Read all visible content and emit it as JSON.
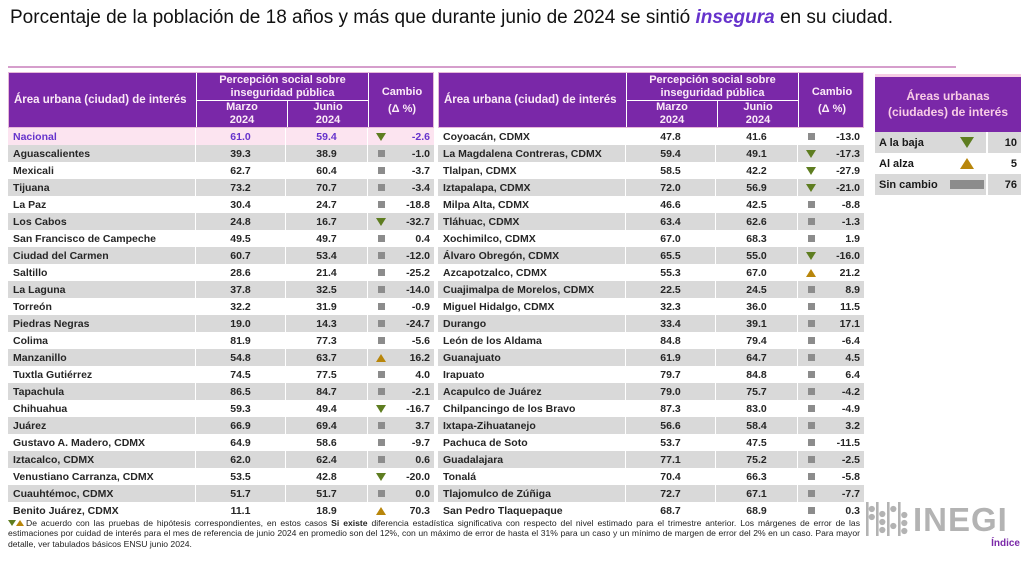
{
  "title": {
    "prefix": "Porcentaje de la población de 18 años y más que durante junio de 2024 se sintió ",
    "highlight": "insegura",
    "suffix": " en su ciudad."
  },
  "header": {
    "col_area": "Área urbana (ciudad) de interés",
    "col_group": "Percepción social sobre inseguridad pública",
    "col_m1": "Marzo",
    "col_m1_sub": "2024",
    "col_m2": "Junio",
    "col_m2_sub": "2024",
    "col_change": "Cambio",
    "col_change_sub": "(Δ %)"
  },
  "legend": {
    "title": "Áreas urbanas (ciudades) de interés",
    "items": [
      {
        "label": "A la baja",
        "symbol": "down",
        "value": "10"
      },
      {
        "label": "Al alza",
        "symbol": "up",
        "value": "5"
      },
      {
        "label": "Sin cambio",
        "symbol": "bar",
        "value": "76"
      }
    ]
  },
  "footnote": {
    "part1": "De acuerdo con las pruebas de hipótesis correspondientes, en estos casos ",
    "bold": "Si existe",
    "part2": " diferencia estadística significativa con respecto del nivel estimado para el trimestre anterior. Los márgenes de error de las estimaciones por cuidad de interés para el mes de referencia de junio 2024 en promedio son del 12%, con un máximo de error de hasta el 31% para un caso y un mínimo de margen de error del 2% en un caso. Para mayor detalle, ver tabulados básicos ENSU junio 2024."
  },
  "logo": {
    "name": "INEGI",
    "link": "Índice"
  },
  "colors": {
    "header_purple": "#7a28a8",
    "accent_violet": "#6633cc",
    "row_gray": "#d9d9d9",
    "row_white": "#ffffff",
    "national_pink": "#fce4f0",
    "down_green": "#5e7d20",
    "up_orange": "#b8860b",
    "no_change_gray": "#8c8c8c"
  },
  "chart_data": {
    "type": "table",
    "title": "Porcentaje de la población de 18 años y más que durante junio de 2024 se sintió insegura en su ciudad.",
    "columns": [
      "Área urbana (ciudad) de interés",
      "Marzo 2024",
      "Junio 2024",
      "Cambio (Δ %)"
    ],
    "trend_meaning": {
      "down": "A la baja (cambio significativo)",
      "up": "Al alza (cambio significativo)",
      "same": "Sin cambio"
    },
    "legend_counts": {
      "A la baja": 10,
      "Al alza": 5,
      "Sin cambio": 76
    },
    "tables": [
      {
        "rows": [
          {
            "name": "Nacional",
            "marzo": "61.0",
            "junio": "59.4",
            "trend": "down",
            "change": "-2.6",
            "emphasis": true
          },
          {
            "name": "Aguascalientes",
            "marzo": "39.3",
            "junio": "38.9",
            "trend": "same",
            "change": "-1.0"
          },
          {
            "name": "Mexicali",
            "marzo": "62.7",
            "junio": "60.4",
            "trend": "same",
            "change": "-3.7"
          },
          {
            "name": "Tijuana",
            "marzo": "73.2",
            "junio": "70.7",
            "trend": "same",
            "change": "-3.4"
          },
          {
            "name": "La Paz",
            "marzo": "30.4",
            "junio": "24.7",
            "trend": "same",
            "change": "-18.8"
          },
          {
            "name": "Los Cabos",
            "marzo": "24.8",
            "junio": "16.7",
            "trend": "down",
            "change": "-32.7"
          },
          {
            "name": "San Francisco de Campeche",
            "marzo": "49.5",
            "junio": "49.7",
            "trend": "same",
            "change": "0.4"
          },
          {
            "name": "Ciudad del Carmen",
            "marzo": "60.7",
            "junio": "53.4",
            "trend": "same",
            "change": "-12.0"
          },
          {
            "name": "Saltillo",
            "marzo": "28.6",
            "junio": "21.4",
            "trend": "same",
            "change": "-25.2"
          },
          {
            "name": "La Laguna",
            "marzo": "37.8",
            "junio": "32.5",
            "trend": "same",
            "change": "-14.0"
          },
          {
            "name": "Torreón",
            "marzo": "32.2",
            "junio": "31.9",
            "trend": "same",
            "change": "-0.9"
          },
          {
            "name": "Piedras Negras",
            "marzo": "19.0",
            "junio": "14.3",
            "trend": "same",
            "change": "-24.7"
          },
          {
            "name": "Colima",
            "marzo": "81.9",
            "junio": "77.3",
            "trend": "same",
            "change": "-5.6"
          },
          {
            "name": "Manzanillo",
            "marzo": "54.8",
            "junio": "63.7",
            "trend": "up",
            "change": "16.2"
          },
          {
            "name": "Tuxtla Gutiérrez",
            "marzo": "74.5",
            "junio": "77.5",
            "trend": "same",
            "change": "4.0"
          },
          {
            "name": "Tapachula",
            "marzo": "86.5",
            "junio": "84.7",
            "trend": "same",
            "change": "-2.1"
          },
          {
            "name": "Chihuahua",
            "marzo": "59.3",
            "junio": "49.4",
            "trend": "down",
            "change": "-16.7"
          },
          {
            "name": "Juárez",
            "marzo": "66.9",
            "junio": "69.4",
            "trend": "same",
            "change": "3.7"
          },
          {
            "name": "Gustavo A. Madero, CDMX",
            "marzo": "64.9",
            "junio": "58.6",
            "trend": "same",
            "change": "-9.7"
          },
          {
            "name": "Iztacalco, CDMX",
            "marzo": "62.0",
            "junio": "62.4",
            "trend": "same",
            "change": "0.6"
          },
          {
            "name": "Venustiano Carranza, CDMX",
            "marzo": "53.5",
            "junio": "42.8",
            "trend": "down",
            "change": "-20.0"
          },
          {
            "name": "Cuauhtémoc, CDMX",
            "marzo": "51.7",
            "junio": "51.7",
            "trend": "same",
            "change": "0.0"
          },
          {
            "name": "Benito Juárez, CDMX",
            "marzo": "11.1",
            "junio": "18.9",
            "trend": "up",
            "change": "70.3"
          }
        ]
      },
      {
        "rows": [
          {
            "name": "Coyoacán, CDMX",
            "marzo": "47.8",
            "junio": "41.6",
            "trend": "same",
            "change": "-13.0"
          },
          {
            "name": "La Magdalena Contreras, CDMX",
            "marzo": "59.4",
            "junio": "49.1",
            "trend": "down",
            "change": "-17.3"
          },
          {
            "name": "Tlalpan, CDMX",
            "marzo": "58.5",
            "junio": "42.2",
            "trend": "down",
            "change": "-27.9"
          },
          {
            "name": "Iztapalapa, CDMX",
            "marzo": "72.0",
            "junio": "56.9",
            "trend": "down",
            "change": "-21.0"
          },
          {
            "name": "Milpa Alta, CDMX",
            "marzo": "46.6",
            "junio": "42.5",
            "trend": "same",
            "change": "-8.8"
          },
          {
            "name": "Tláhuac, CDMX",
            "marzo": "63.4",
            "junio": "62.6",
            "trend": "same",
            "change": "-1.3"
          },
          {
            "name": "Xochimilco, CDMX",
            "marzo": "67.0",
            "junio": "68.3",
            "trend": "same",
            "change": "1.9"
          },
          {
            "name": "Álvaro Obregón, CDMX",
            "marzo": "65.5",
            "junio": "55.0",
            "trend": "down",
            "change": "-16.0"
          },
          {
            "name": "Azcapotzalco, CDMX",
            "marzo": "55.3",
            "junio": "67.0",
            "trend": "up",
            "change": "21.2"
          },
          {
            "name": "Cuajimalpa de Morelos, CDMX",
            "marzo": "22.5",
            "junio": "24.5",
            "trend": "same",
            "change": "8.9"
          },
          {
            "name": "Miguel Hidalgo, CDMX",
            "marzo": "32.3",
            "junio": "36.0",
            "trend": "same",
            "change": "11.5"
          },
          {
            "name": "Durango",
            "marzo": "33.4",
            "junio": "39.1",
            "trend": "same",
            "change": "17.1"
          },
          {
            "name": "León de los Aldama",
            "marzo": "84.8",
            "junio": "79.4",
            "trend": "same",
            "change": "-6.4"
          },
          {
            "name": "Guanajuato",
            "marzo": "61.9",
            "junio": "64.7",
            "trend": "same",
            "change": "4.5"
          },
          {
            "name": "Irapuato",
            "marzo": "79.7",
            "junio": "84.8",
            "trend": "same",
            "change": "6.4"
          },
          {
            "name": "Acapulco de Juárez",
            "marzo": "79.0",
            "junio": "75.7",
            "trend": "same",
            "change": "-4.2"
          },
          {
            "name": "Chilpancingo de los Bravo",
            "marzo": "87.3",
            "junio": "83.0",
            "trend": "same",
            "change": "-4.9"
          },
          {
            "name": "Ixtapa-Zihuatanejo",
            "marzo": "56.6",
            "junio": "58.4",
            "trend": "same",
            "change": "3.2"
          },
          {
            "name": "Pachuca de Soto",
            "marzo": "53.7",
            "junio": "47.5",
            "trend": "same",
            "change": "-11.5"
          },
          {
            "name": "Guadalajara",
            "marzo": "77.1",
            "junio": "75.2",
            "trend": "same",
            "change": "-2.5"
          },
          {
            "name": "Tonalá",
            "marzo": "70.4",
            "junio": "66.3",
            "trend": "same",
            "change": "-5.8"
          },
          {
            "name": "Tlajomulco de Zúñiga",
            "marzo": "72.7",
            "junio": "67.1",
            "trend": "same",
            "change": "-7.7"
          },
          {
            "name": "San Pedro Tlaquepaque",
            "marzo": "68.7",
            "junio": "68.9",
            "trend": "same",
            "change": "0.3"
          }
        ]
      }
    ]
  }
}
